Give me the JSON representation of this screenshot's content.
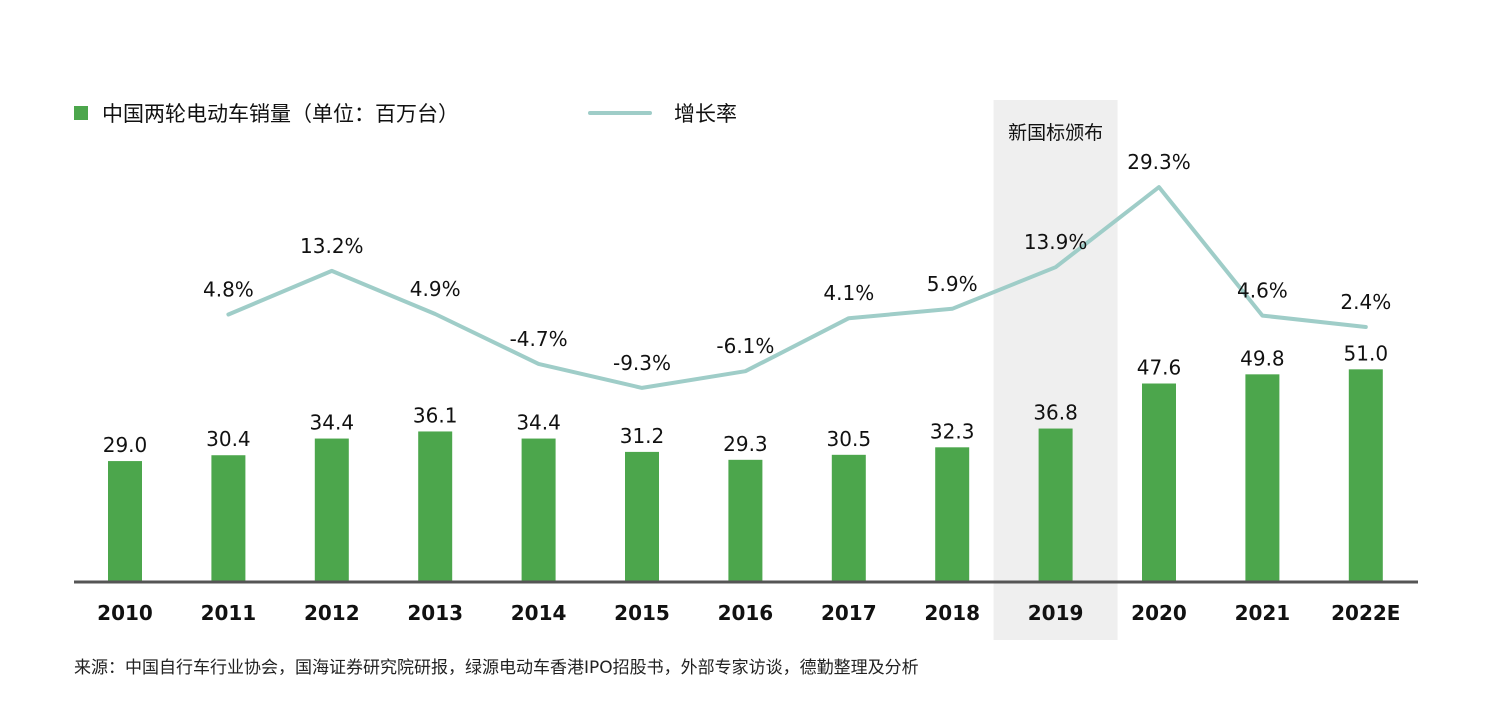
{
  "colors": {
    "bar": "#4ca64c",
    "line": "#9fcdc8",
    "highlight_band": "#efefef",
    "axis": "#555555"
  },
  "legend": {
    "bar_label": "中国两轮电动车销量（单位：百万台）",
    "line_label": "增长率"
  },
  "annotation": {
    "highlight_category": "2019",
    "label": "新国标颁布"
  },
  "source": "来源：中国自行车行业协会，国海证券研究院研报，绿源电动车香港IPO招股书，外部专家访谈，德勤整理及分析",
  "chart_data": {
    "type": "bar",
    "categories": [
      "2010",
      "2011",
      "2012",
      "2013",
      "2014",
      "2015",
      "2016",
      "2017",
      "2018",
      "2019",
      "2020",
      "2021",
      "2022E"
    ],
    "series": [
      {
        "name": "中国两轮电动车销量（单位：百万台）",
        "type": "bar",
        "values": [
          29.0,
          30.4,
          34.4,
          36.1,
          34.4,
          31.2,
          29.3,
          30.5,
          32.3,
          36.8,
          47.6,
          49.8,
          51.0
        ],
        "labels": [
          "29.0",
          "30.4",
          "34.4",
          "36.1",
          "34.4",
          "31.2",
          "29.3",
          "30.5",
          "32.3",
          "36.8",
          "47.6",
          "49.8",
          "51.0"
        ]
      },
      {
        "name": "增长率",
        "type": "line",
        "values": [
          null,
          4.8,
          13.2,
          4.9,
          -4.7,
          -9.3,
          -6.1,
          4.1,
          5.9,
          13.9,
          29.3,
          4.6,
          2.4
        ],
        "labels": [
          "",
          "4.8%",
          "13.2%",
          "4.9%",
          "-4.7%",
          "-9.3%",
          "-6.1%",
          "4.1%",
          "5.9%",
          "13.9%",
          "29.3%",
          "4.6%",
          "2.4%"
        ]
      }
    ],
    "bar_axis_range": [
      0,
      60
    ],
    "line_axis_range": [
      -30,
      42
    ],
    "grid": false,
    "legend_position": "top-left"
  }
}
